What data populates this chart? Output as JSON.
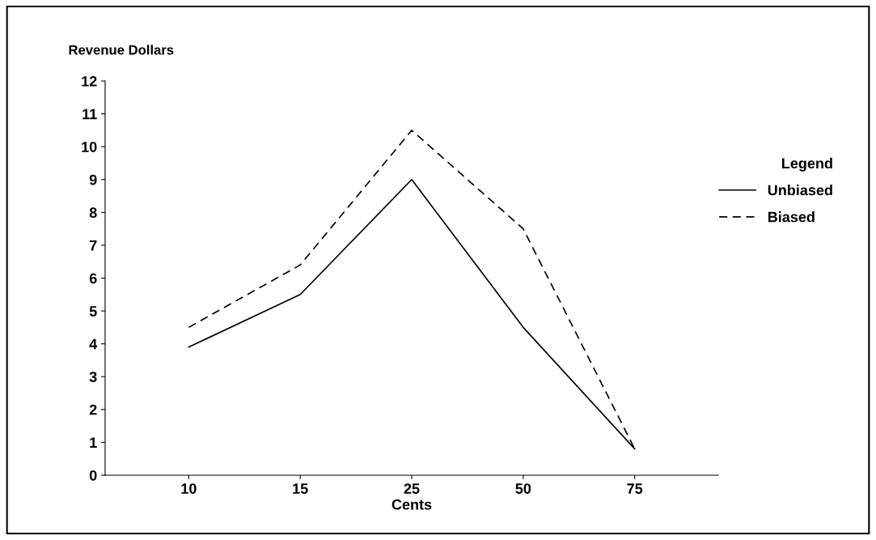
{
  "chart_data": {
    "type": "line",
    "xlabel": "Cents",
    "ylabel": "Revenue Dollars",
    "legend_title": "Legend",
    "categories": [
      "10",
      "15",
      "25",
      "50",
      "75"
    ],
    "series": [
      {
        "name": "Unbiased",
        "color": "#000000",
        "line_style": "solid",
        "values": [
          3.9,
          5.5,
          9.0,
          4.5,
          0.8
        ]
      },
      {
        "name": "Biased",
        "color": "#000000",
        "line_style": "dashed",
        "values": [
          4.5,
          6.4,
          10.5,
          7.5,
          0.8
        ]
      }
    ],
    "ylim": [
      0,
      12
    ],
    "yticks": [
      0,
      1,
      2,
      3,
      4,
      5,
      6,
      7,
      8,
      9,
      10,
      11,
      12
    ],
    "grid": false,
    "legend": "right",
    "marker": "none"
  }
}
